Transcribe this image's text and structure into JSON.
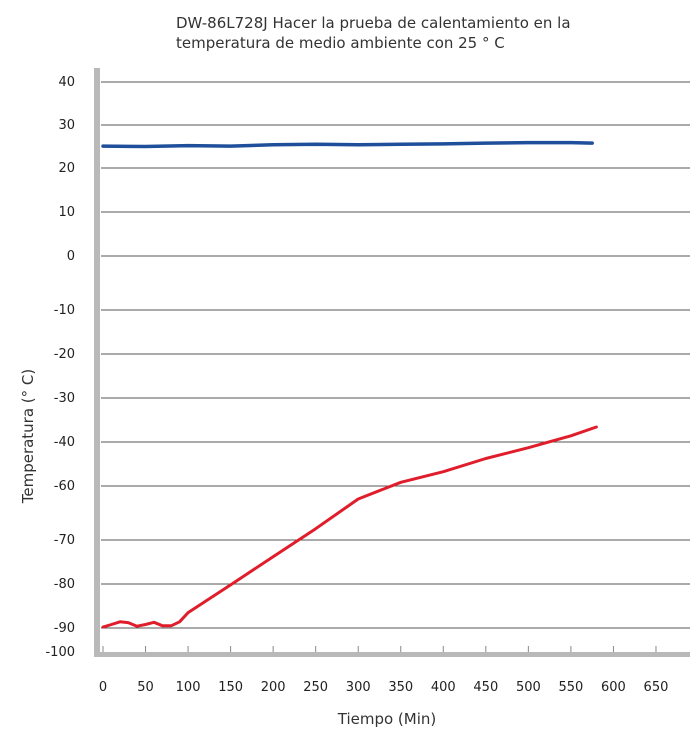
{
  "chart_data": {
    "type": "line",
    "title_lines": [
      "DW-86L728J  Hacer la prueba de calentamiento en la",
      "temperatura de medio ambiente con 25 ° C"
    ],
    "xlabel": "Tiempo (Min)",
    "ylabel": "Temperatura (° C)",
    "x_ticks": [
      0,
      50,
      100,
      150,
      200,
      250,
      300,
      350,
      400,
      450,
      500,
      550,
      600,
      650
    ],
    "y_ticks": [
      "40",
      "30",
      "20",
      "10",
      "0",
      "-10",
      "-20",
      "-30",
      "-40",
      "-60",
      "-70",
      "-80",
      "-90",
      "-100"
    ],
    "xlim": [
      0,
      690
    ],
    "grid": "horizontal",
    "series": [
      {
        "color": "#1f4f9a",
        "points": [
          [
            0,
            25.1
          ],
          [
            50,
            25.0
          ],
          [
            100,
            25.2
          ],
          [
            150,
            25.1
          ],
          [
            200,
            25.4
          ],
          [
            250,
            25.5
          ],
          [
            300,
            25.4
          ],
          [
            350,
            25.5
          ],
          [
            400,
            25.6
          ],
          [
            450,
            25.8
          ],
          [
            500,
            25.9
          ],
          [
            550,
            25.9
          ],
          [
            575,
            25.8
          ]
        ]
      },
      {
        "color": "#e01e2b",
        "points": [
          [
            0,
            -89.8
          ],
          [
            10,
            -89.2
          ],
          [
            20,
            -88.6
          ],
          [
            30,
            -88.8
          ],
          [
            40,
            -89.6
          ],
          [
            50,
            -89.2
          ],
          [
            60,
            -88.7
          ],
          [
            70,
            -89.5
          ],
          [
            80,
            -89.5
          ],
          [
            90,
            -88.6
          ],
          [
            100,
            -86.5
          ],
          [
            150,
            -80.2
          ],
          [
            200,
            -73.8
          ],
          [
            250,
            -67.9
          ],
          [
            300,
            -62.4
          ],
          [
            350,
            -58.3
          ],
          [
            400,
            -53.5
          ],
          [
            450,
            -47.5
          ],
          [
            500,
            -42.6
          ],
          [
            550,
            -38.6
          ],
          [
            580,
            -36.6
          ]
        ]
      }
    ]
  }
}
